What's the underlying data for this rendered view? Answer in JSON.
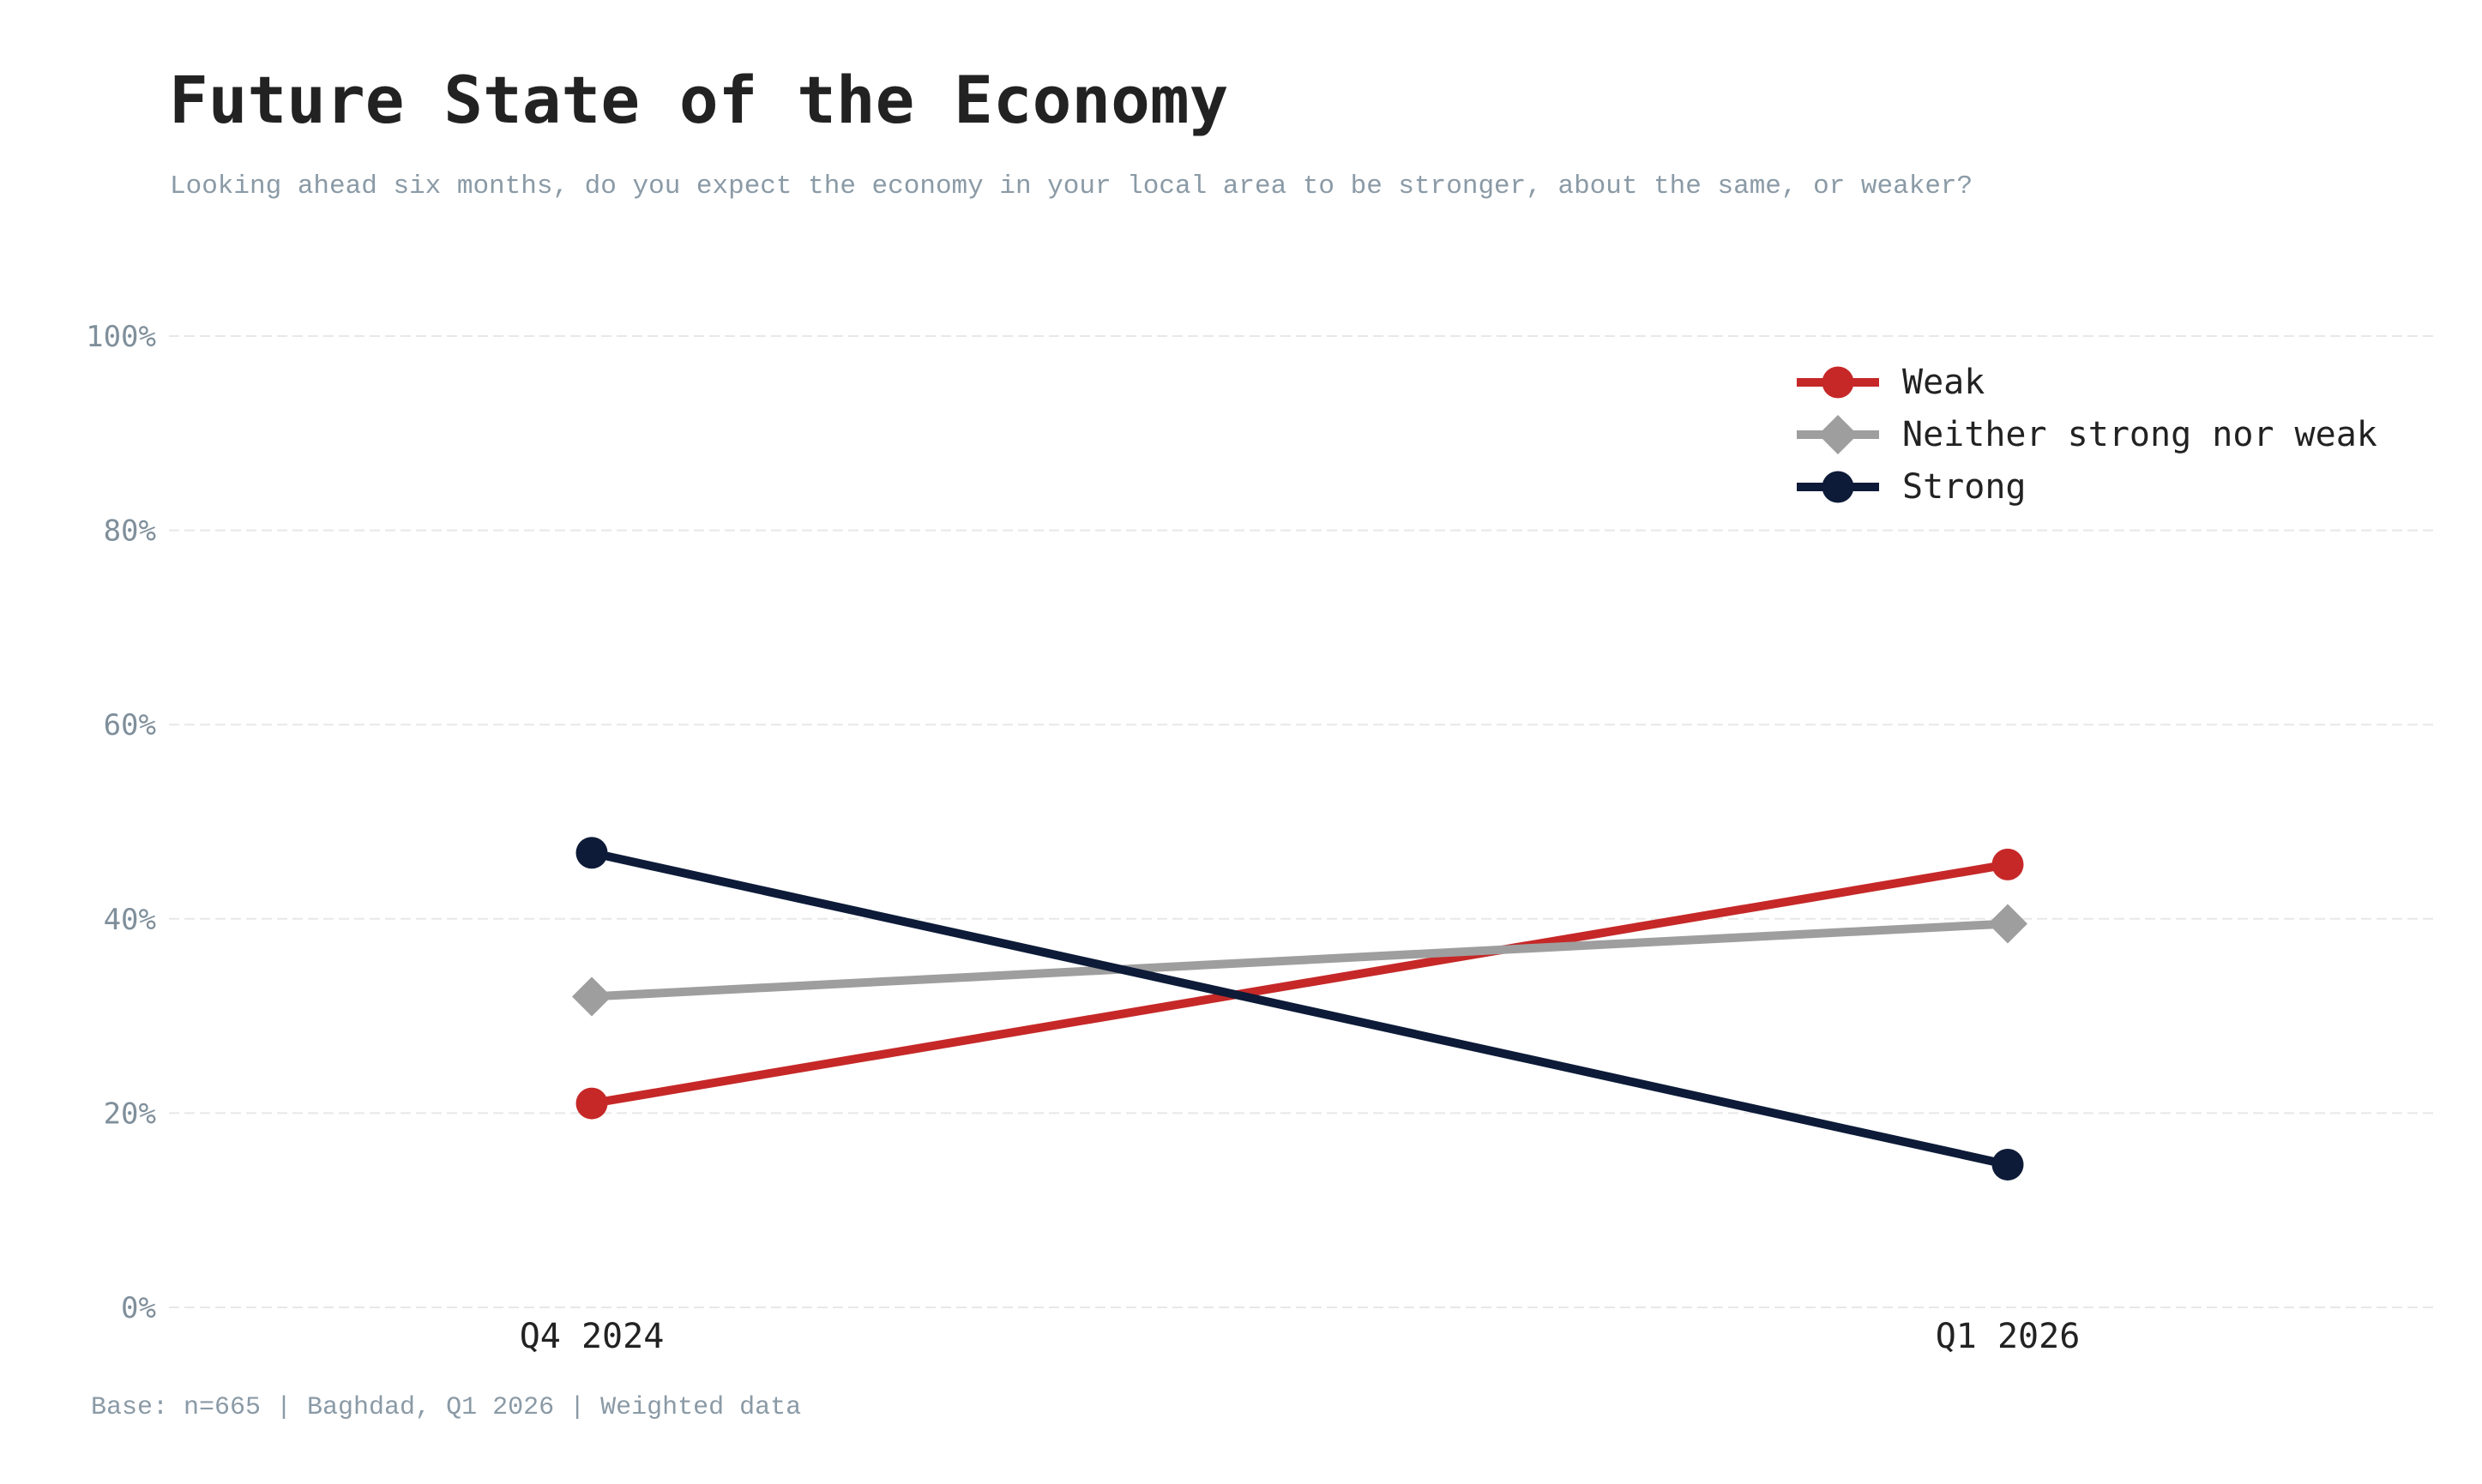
{
  "header": {
    "title": "Future State of the Economy",
    "subtitle": "Looking ahead six months, do you expect the economy in your local area to be stronger, about the same, or weaker?"
  },
  "footer": {
    "note": "Base: n=665 | Baghdad, Q1 2026 | Weighted data"
  },
  "chart_data": {
    "type": "line",
    "title": "Future State of the Economy",
    "subtitle": "Looking ahead six months, do you expect the economy in your local area to be stronger, about the same, or weaker?",
    "xlabel": "",
    "ylabel": "",
    "categories": [
      "Q4 2024",
      "Q1 2026"
    ],
    "ylim": [
      0,
      100
    ],
    "yticks": [
      0,
      20,
      40,
      60,
      80,
      100
    ],
    "ytick_labels": [
      "0%",
      "20%",
      "40%",
      "60%",
      "80%",
      "100%"
    ],
    "grid": true,
    "legend_position": "top-right",
    "series": [
      {
        "name": "Weak",
        "values": [
          21.0,
          45.6
        ],
        "color": "#c62828",
        "marker": "circle"
      },
      {
        "name": "Neither strong nor weak",
        "values": [
          32.0,
          39.5
        ],
        "color": "#9e9e9e",
        "marker": "diamond"
      },
      {
        "name": "Strong",
        "values": [
          46.8,
          14.7
        ],
        "color": "#0d1b38",
        "marker": "circle"
      }
    ]
  }
}
